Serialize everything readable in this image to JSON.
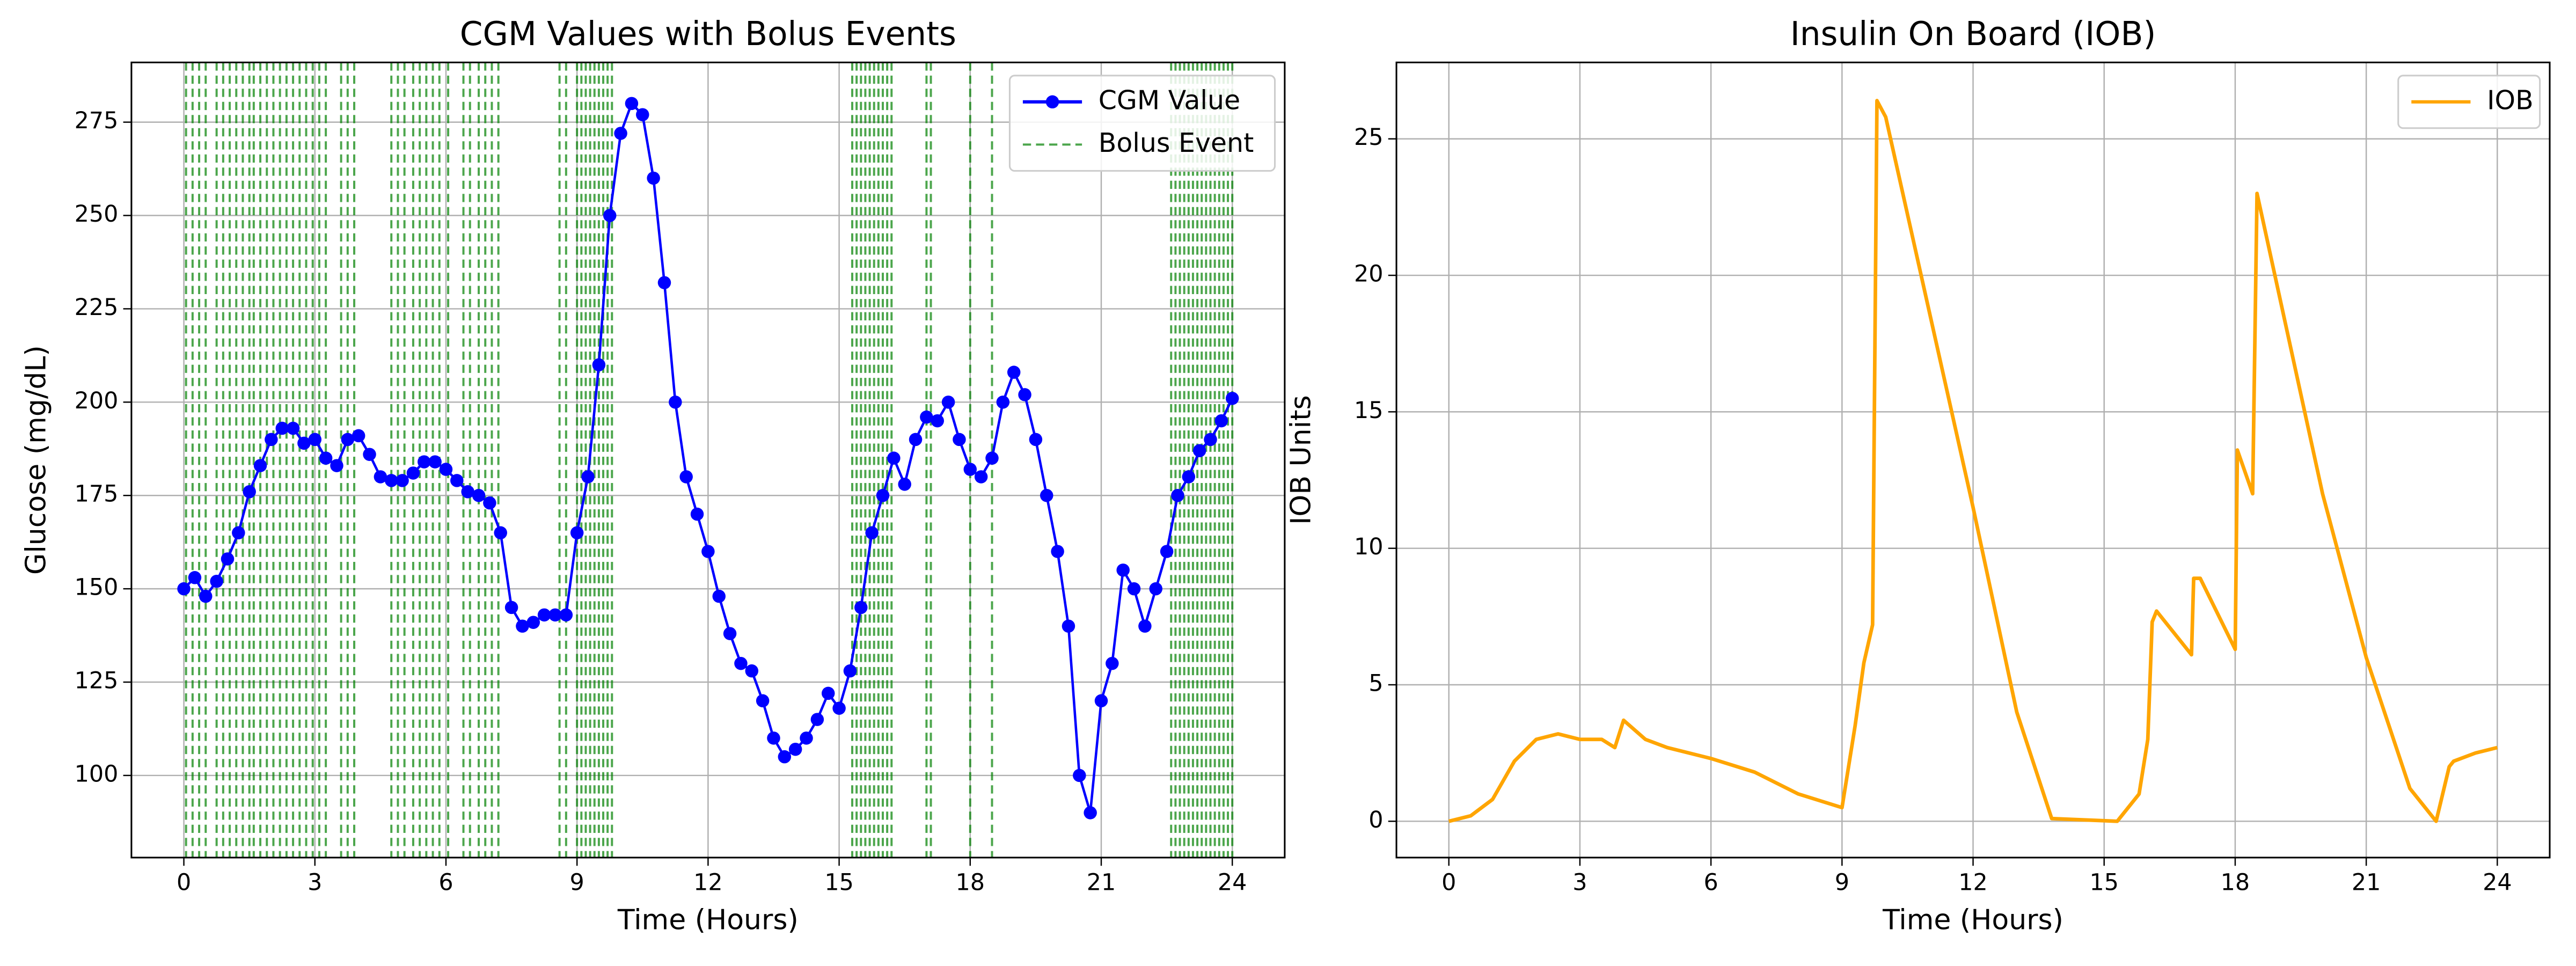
{
  "chart_data": [
    {
      "type": "line",
      "title": "CGM Values with Bolus Events",
      "xlabel": "Time (Hours)",
      "ylabel": "Glucose (mg/dL)",
      "xlim": [
        -1.2,
        25.2
      ],
      "ylim": [
        78,
        291
      ],
      "xticks": [
        0,
        3,
        6,
        9,
        12,
        15,
        18,
        21,
        24
      ],
      "yticks": [
        100,
        125,
        150,
        175,
        200,
        225,
        250,
        275
      ],
      "grid": true,
      "legend": "upper right",
      "series": [
        {
          "name": "CGM Value",
          "color": "blue",
          "marker": "o",
          "x": [
            0,
            0.25,
            0.5,
            0.75,
            1,
            1.25,
            1.5,
            1.75,
            2,
            2.25,
            2.5,
            2.75,
            3,
            3.25,
            3.5,
            3.75,
            4,
            4.25,
            4.5,
            4.75,
            5,
            5.25,
            5.5,
            5.75,
            6,
            6.25,
            6.5,
            6.75,
            7,
            7.25,
            7.5,
            7.75,
            8,
            8.25,
            8.5,
            8.75,
            9,
            9.25,
            9.5,
            9.75,
            10,
            10.25,
            10.5,
            10.75,
            11,
            11.25,
            11.5,
            11.75,
            12,
            12.25,
            12.5,
            12.75,
            13,
            13.25,
            13.5,
            13.75,
            14,
            14.25,
            14.5,
            14.75,
            15,
            15.25,
            15.5,
            15.75,
            16,
            16.25,
            16.5,
            16.75,
            17,
            17.25,
            17.5,
            17.75,
            18,
            18.25,
            18.5,
            18.75,
            19,
            19.25,
            19.5,
            19.75,
            20,
            20.25,
            20.5,
            20.75,
            21,
            21.25,
            21.5,
            21.75,
            22,
            22.25,
            22.5,
            22.75,
            23,
            23.25,
            23.5,
            23.75,
            24
          ],
          "values": [
            150,
            153,
            148,
            152,
            158,
            165,
            176,
            183,
            190,
            193,
            193,
            189,
            190,
            185,
            183,
            190,
            191,
            186,
            180,
            179,
            179,
            181,
            184,
            184,
            182,
            179,
            176,
            175,
            173,
            165,
            145,
            140,
            141,
            143,
            143,
            143,
            165,
            180,
            210,
            250,
            272,
            280,
            277,
            260,
            232,
            200,
            180,
            170,
            160,
            148,
            138,
            130,
            128,
            120,
            110,
            105,
            107,
            110,
            115,
            122,
            118,
            128,
            145,
            165,
            175,
            185,
            178,
            190,
            196,
            195,
            200,
            190,
            182,
            180,
            185,
            200,
            208,
            202,
            190,
            175,
            160,
            140,
            100,
            90,
            120,
            130,
            155,
            150,
            140,
            150,
            160,
            175,
            180,
            187,
            190,
            195,
            201
          ]
        },
        {
          "name": "Bolus Event",
          "color": "green",
          "linestyle": "dashed",
          "type": "vline",
          "x": [
            0.05,
            0.2,
            0.35,
            0.5,
            0.75,
            0.9,
            1.05,
            1.2,
            1.35,
            1.5,
            1.6,
            1.75,
            1.9,
            2.05,
            2.2,
            2.35,
            2.5,
            2.65,
            2.8,
            2.95,
            3.1,
            3.25,
            3.6,
            3.75,
            3.9,
            4.75,
            4.9,
            5.05,
            5.25,
            5.4,
            5.55,
            5.7,
            5.85,
            6.05,
            6.4,
            6.55,
            6.75,
            6.9,
            7.05,
            7.2,
            8.6,
            8.75,
            9.0,
            9.1,
            9.2,
            9.3,
            9.4,
            9.5,
            9.6,
            9.7,
            9.8,
            15.3,
            15.4,
            15.5,
            15.6,
            15.7,
            15.8,
            15.9,
            16.0,
            16.1,
            16.2,
            17.0,
            17.1,
            18.0,
            18.5,
            22.6,
            22.7,
            22.8,
            22.9,
            23.0,
            23.1,
            23.2,
            23.3,
            23.4,
            23.5,
            23.6,
            23.7,
            23.8,
            23.9,
            24.0
          ]
        }
      ]
    },
    {
      "type": "line",
      "title": "Insulin On Board (IOB)",
      "xlabel": "Time (Hours)",
      "ylabel": "IOB Units",
      "xlim": [
        -1.2,
        25.2
      ],
      "ylim": [
        -1.33,
        27.8
      ],
      "xticks": [
        0,
        3,
        6,
        9,
        12,
        15,
        18,
        21,
        24
      ],
      "yticks": [
        0,
        5,
        10,
        15,
        20,
        25
      ],
      "grid": true,
      "legend": "upper right",
      "series": [
        {
          "name": "IOB",
          "color": "orange",
          "x": [
            0,
            0.5,
            1,
            1.5,
            2,
            2.5,
            3,
            3.5,
            3.8,
            4,
            4.5,
            5,
            6,
            7,
            8,
            9,
            9.3,
            9.5,
            9.7,
            9.8,
            10,
            12,
            13,
            13.8,
            15.3,
            15.8,
            16,
            16.1,
            16.2,
            17,
            17.05,
            17.2,
            18,
            18.05,
            18.4,
            18.5,
            20,
            21,
            22,
            22.6,
            22.9,
            23,
            23.5,
            24
          ],
          "values": [
            0,
            0.2,
            0.8,
            2.2,
            3.0,
            3.2,
            3.0,
            3.0,
            2.7,
            3.7,
            3.0,
            2.7,
            2.3,
            1.8,
            1.0,
            0.5,
            3.5,
            5.8,
            7.2,
            26.4,
            25.8,
            11.5,
            4,
            0.1,
            0,
            1.0,
            3.0,
            7.3,
            7.7,
            6.1,
            8.9,
            8.9,
            6.3,
            13.6,
            12.0,
            23.0,
            12,
            6,
            1.2,
            0,
            2.0,
            2.2,
            2.5,
            2.7
          ]
        }
      ]
    }
  ]
}
